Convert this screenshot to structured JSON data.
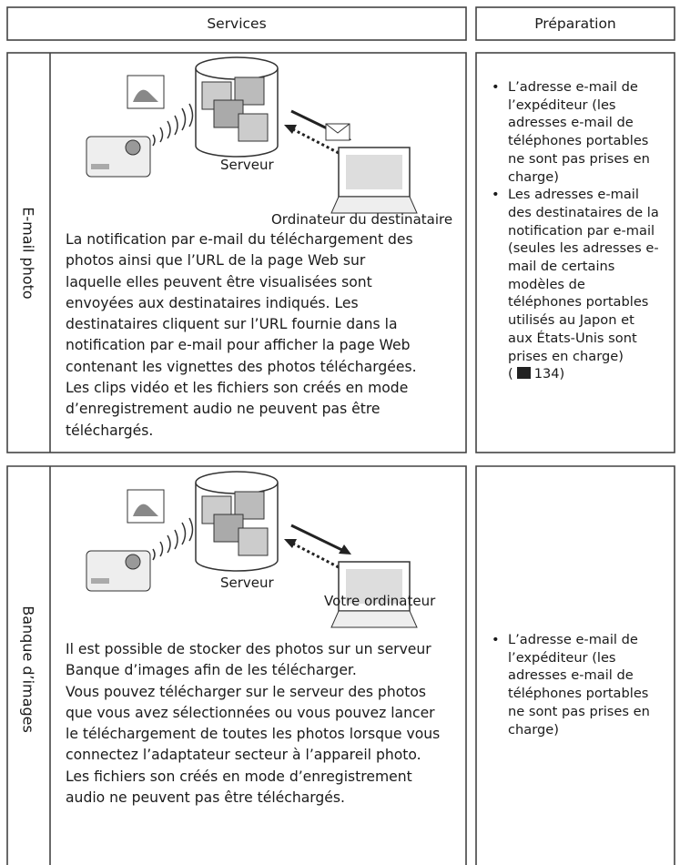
{
  "header": {
    "services": "Services",
    "preparation": "Préparation"
  },
  "sections": [
    {
      "label": "E-mail photo",
      "diagram": {
        "server": "Serveur",
        "computer": "Ordinateur du destinataire"
      },
      "description": [
        "La notification par e-mail du téléchargement des",
        "photos ainsi que l’URL de la page Web sur",
        "laquelle elles peuvent être visualisées sont",
        "envoyées aux destinataires indiqués. Les",
        "destinataires cliquent sur l’URL fournie dans la",
        "notification par e-mail pour afficher la page Web",
        "contenant les vignettes des photos téléchargées.",
        "Les clips vidéo et les fichiers son créés en mode",
        "d’enregistrement audio ne peuvent pas être",
        "téléchargés."
      ],
      "preparation": [
        {
          "lines": [
            "L’adresse e-mail de",
            "l’expéditeur (les",
            "adresses e-mail de",
            "téléphones portables",
            "ne sont pas prises en",
            "charge)"
          ]
        },
        {
          "lines": [
            "Les adresses e-mail",
            "des destinataires de la",
            "notification par e-mail",
            "(seules les adresses e-",
            "mail de certains",
            "modèles de",
            "téléphones portables",
            "utilisés au Japon et",
            "aux États-Unis sont",
            "prises en charge)"
          ],
          "ref": {
            "open": "(",
            "close": "134)"
          }
        }
      ]
    },
    {
      "label": "Banque d’images",
      "diagram": {
        "server": "Serveur",
        "computer": "Votre ordinateur"
      },
      "description": [
        "Il est possible de stocker des photos sur un serveur",
        "Banque d’images afin de les télécharger.",
        "Vous pouvez télécharger sur le serveur des photos",
        "que vous avez sélectionnées ou vous pouvez lancer",
        "le téléchargement de toutes les photos lorsque vous",
        "connectez l’adaptateur secteur à l’appareil photo.",
        "Les fichiers son créés en mode d’enregistrement",
        "audio ne peuvent pas être téléchargés."
      ],
      "preparation": [
        {
          "lines": [
            "L’adresse e-mail de",
            "l’expéditeur (les",
            "adresses e-mail de",
            "téléphones portables",
            "ne sont pas prises en",
            "charge)"
          ]
        }
      ]
    }
  ]
}
